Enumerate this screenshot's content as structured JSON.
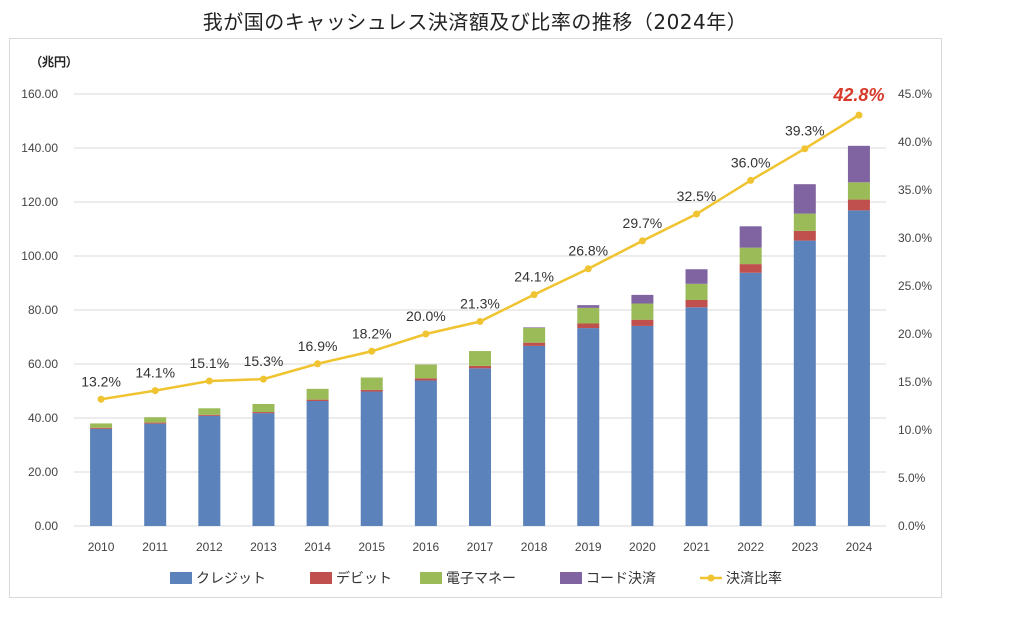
{
  "page": {
    "title": "我が国のキャッシュレス決済額及び比率の推移（2024年）",
    "unit_label": "（兆円）"
  },
  "chart_data": {
    "type": "bar",
    "stacked": true,
    "categories": [
      "2010",
      "2011",
      "2012",
      "2013",
      "2014",
      "2015",
      "2016",
      "2017",
      "2018",
      "2019",
      "2020",
      "2021",
      "2022",
      "2023",
      "2024"
    ],
    "series": [
      {
        "name": "クレジット",
        "color": "#5b82ba",
        "axis": "left",
        "values": [
          36.0,
          37.9,
          40.8,
          41.8,
          46.3,
          49.8,
          53.9,
          58.4,
          66.7,
          73.3,
          74.1,
          81.0,
          93.8,
          105.7,
          116.9
        ]
      },
      {
        "name": "デビット",
        "color": "#bf504d",
        "axis": "left",
        "values": [
          0.4,
          0.4,
          0.4,
          0.4,
          0.5,
          0.6,
          0.8,
          0.9,
          1.2,
          1.7,
          2.3,
          2.7,
          3.2,
          3.6,
          4.0
        ]
      },
      {
        "name": "電子マネー",
        "color": "#9bbb59",
        "axis": "left",
        "values": [
          1.6,
          2.0,
          2.4,
          3.0,
          4.0,
          4.6,
          5.1,
          5.5,
          5.5,
          5.8,
          6.0,
          6.0,
          6.1,
          6.4,
          6.4
        ]
      },
      {
        "name": "コード決済",
        "color": "#8064a2",
        "axis": "left",
        "values": [
          0,
          0,
          0,
          0,
          0,
          0,
          0,
          0,
          0.2,
          1.0,
          3.2,
          5.4,
          7.9,
          10.9,
          13.5
        ]
      },
      {
        "name": "決済比率",
        "color": "#f0c330",
        "type": "line",
        "axis": "right",
        "values": [
          13.2,
          14.1,
          15.1,
          15.3,
          16.9,
          18.2,
          20.0,
          21.3,
          24.1,
          26.8,
          29.7,
          32.5,
          36.0,
          39.3,
          42.8
        ],
        "labels": [
          "13.2%",
          "14.1%",
          "15.1%",
          "15.3%",
          "16.9%",
          "18.2%",
          "20.0%",
          "21.3%",
          "24.1%",
          "26.8%",
          "29.7%",
          "32.5%",
          "36.0%",
          "39.3%",
          "42.8%"
        ],
        "highlight_color": "#d83a2a"
      }
    ],
    "y_left": {
      "min": 0,
      "max": 160,
      "step": 20,
      "ticks": [
        "0.00",
        "20.00",
        "40.00",
        "60.00",
        "80.00",
        "100.00",
        "120.00",
        "140.00",
        "160.00"
      ]
    },
    "y_right": {
      "min": 0,
      "max": 45,
      "step": 5,
      "ticks": [
        "0.0%",
        "5.0%",
        "10.0%",
        "15.0%",
        "20.0%",
        "25.0%",
        "30.0%",
        "35.0%",
        "40.0%",
        "45.0%"
      ]
    },
    "grid": true,
    "legend_position": "bottom"
  }
}
